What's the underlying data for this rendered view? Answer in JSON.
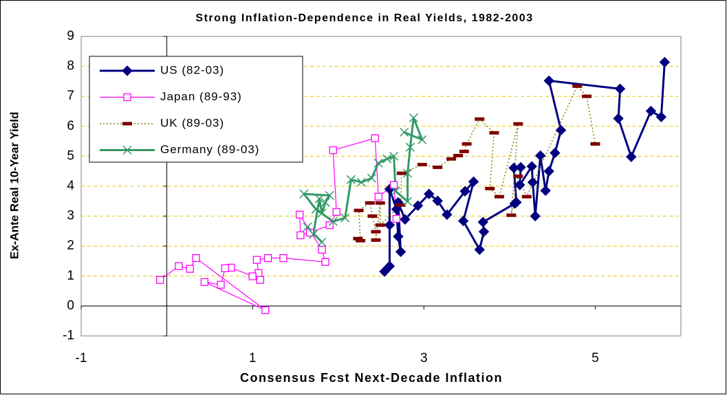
{
  "chart_data": {
    "type": "line",
    "title": "Strong Inflation-Dependence in Real Yields, 1982-2003",
    "x_label": "Consensus Fcst Next-Decade Inflation",
    "y_label": "Ex-Ante Real 10-Year Yield",
    "xlim": [
      -1,
      6
    ],
    "xticks": [
      -1,
      1,
      3,
      5
    ],
    "ylim": [
      -1,
      9
    ],
    "yticks": [
      -1,
      0,
      1,
      2,
      3,
      4,
      5,
      6,
      7,
      8,
      9
    ],
    "grid": true,
    "grid_color": "#e6c800",
    "legend": "upper left",
    "series": [
      {
        "name": "US (82-03)",
        "color": "#000080",
        "marker": "diamond",
        "line": "solid",
        "line_width": 3,
        "x": [
          2.54,
          2.6,
          2.6,
          2.6,
          2.68,
          2.7,
          2.73,
          2.7,
          2.78,
          2.93,
          3.06,
          3.16,
          3.27,
          3.48,
          3.58,
          3.46,
          3.65,
          3.7,
          3.69,
          4.06,
          4.08,
          4.05,
          4.13,
          4.12,
          4.26,
          4.27,
          4.3,
          4.36,
          4.42,
          4.46,
          4.53,
          4.6,
          4.46,
          5.29,
          5.27,
          5.42,
          5.65,
          5.77,
          5.81
        ],
        "values": [
          1.15,
          1.33,
          2.7,
          3.9,
          3.23,
          2.32,
          1.81,
          3.46,
          2.89,
          3.35,
          3.74,
          3.51,
          3.05,
          3.83,
          4.15,
          2.84,
          1.88,
          2.48,
          2.8,
          3.42,
          3.46,
          4.61,
          4.63,
          4.04,
          4.66,
          4.13,
          3.0,
          5.02,
          3.85,
          4.5,
          5.11,
          5.87,
          7.52,
          7.25,
          6.26,
          4.98,
          6.51,
          6.31,
          8.14
        ]
      },
      {
        "name": "Japan (89-93)",
        "color": "#ff00ff",
        "marker": "square",
        "line": "solid",
        "line_width": 1.2,
        "x": [
          2.68,
          2.65,
          2.47,
          2.43,
          1.94,
          1.98,
          1.9,
          1.67,
          1.56,
          1.55,
          1.81,
          1.85,
          1.36,
          1.18,
          1.05,
          1.07,
          1.09,
          1.0,
          0.75,
          0.68,
          0.63,
          0.44,
          1.15,
          0.34,
          0.27,
          0.14,
          -0.08
        ],
        "values": [
          2.91,
          4.04,
          3.65,
          5.6,
          5.2,
          3.14,
          2.7,
          2.45,
          2.36,
          3.05,
          1.88,
          1.47,
          1.6,
          1.6,
          1.54,
          1.1,
          0.87,
          0.99,
          1.28,
          1.26,
          0.71,
          0.8,
          -0.14,
          1.6,
          1.24,
          1.33,
          0.87
        ]
      },
      {
        "name": "UK (89-03)",
        "color": "#800000",
        "line_color": "#808000",
        "marker": "dash",
        "line": "dotted",
        "line_width": 1.5,
        "x": [
          2.23,
          2.26,
          2.24,
          2.37,
          2.4,
          2.44,
          2.44,
          2.49,
          2.49,
          2.73,
          2.74,
          2.98,
          3.16,
          3.32,
          3.4,
          3.47,
          3.5,
          3.65,
          3.82,
          3.77,
          3.88,
          4.1,
          4.02,
          4.1,
          4.2,
          4.79,
          4.9,
          5.0
        ],
        "values": [
          2.25,
          2.18,
          3.19,
          3.44,
          3.0,
          2.48,
          2.2,
          3.44,
          2.7,
          3.37,
          4.43,
          4.72,
          4.63,
          4.91,
          5.02,
          5.16,
          5.41,
          6.24,
          5.78,
          3.92,
          3.65,
          6.08,
          3.03,
          4.33,
          3.65,
          7.34,
          7.0,
          5.41
        ]
      },
      {
        "name": "Germany (89-03)",
        "color": "#339966",
        "marker": "x",
        "line": "solid",
        "line_width": 3,
        "x": [
          1.81,
          1.64,
          1.71,
          1.78,
          1.81,
          1.85,
          1.9,
          1.6,
          1.74,
          1.94,
          2.08,
          2.15,
          2.27,
          2.39,
          2.47,
          2.57,
          2.65,
          2.67,
          2.81,
          2.81,
          2.84,
          2.88,
          2.98,
          2.77
        ],
        "values": [
          2.13,
          2.64,
          2.39,
          3.58,
          3.1,
          3.46,
          3.69,
          3.74,
          3.23,
          2.82,
          2.94,
          4.22,
          4.13,
          4.27,
          4.77,
          4.91,
          5.0,
          3.83,
          3.49,
          4.43,
          5.3,
          6.28,
          5.55,
          5.8
        ]
      }
    ]
  }
}
